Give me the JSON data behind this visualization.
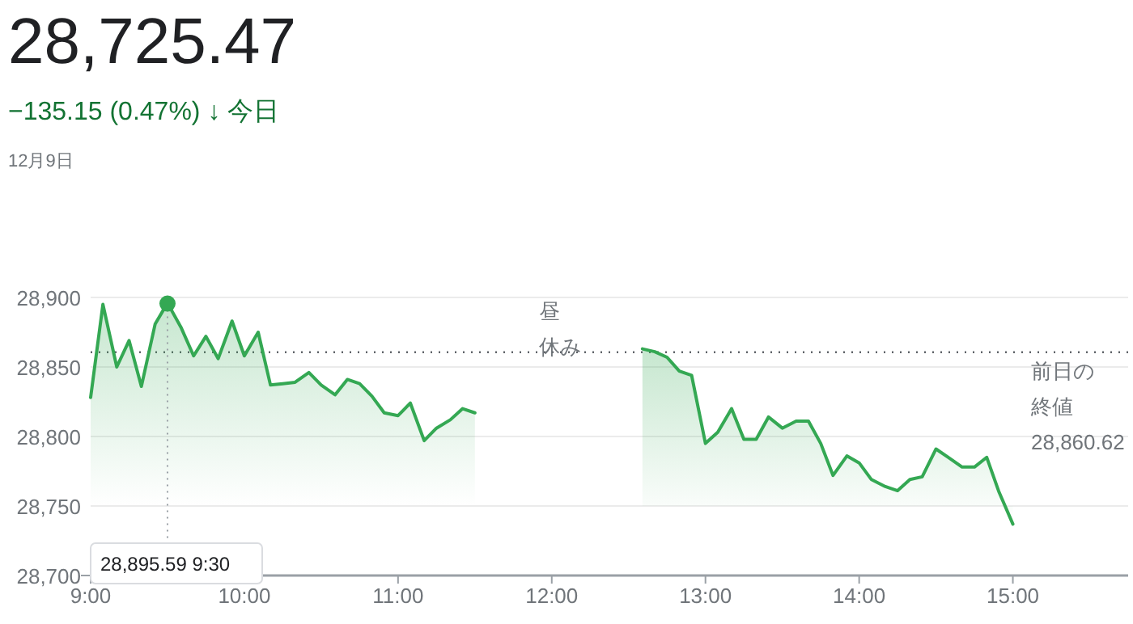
{
  "chart_data": {
    "type": "area",
    "title": "28,725.47",
    "subtitle": "−135.15 (0.47%) ↓ 今日",
    "annotations": [
      "12月9日",
      "昼",
      "休み",
      "前日の",
      "終値",
      "28,860.62",
      {
        "text": "28,895.59 9:30",
        "x": 9.5,
        "y": 28895.59
      }
    ],
    "xlim": [
      9,
      15.75
    ],
    "ylim": [
      28700,
      28900
    ],
    "xticks": [
      {
        "value": 9,
        "label": "9:00"
      },
      {
        "value": 10,
        "label": "10:00"
      },
      {
        "value": 11,
        "label": "11:00"
      },
      {
        "value": 12,
        "label": "12:00"
      },
      {
        "value": 13,
        "label": "13:00"
      },
      {
        "value": 14,
        "label": "14:00"
      },
      {
        "value": 15,
        "label": "15:00"
      }
    ],
    "yticks": [
      {
        "value": 28700,
        "label": "28,700"
      },
      {
        "value": 28750,
        "label": "28,750"
      },
      {
        "value": 28800,
        "label": "28,800"
      },
      {
        "value": 28850,
        "label": "28,850"
      },
      {
        "value": 28900,
        "label": "28,900"
      }
    ],
    "grid": "y",
    "ref_lines": [
      {
        "axis": "y",
        "value": 28860.62,
        "color": "#5f6368",
        "line_style": "dotted"
      }
    ],
    "series": [
      {
        "color": "#34a853",
        "x": [
          9.0,
          9.08,
          9.17,
          9.25,
          9.33,
          9.42,
          9.5,
          9.59,
          9.67,
          9.75,
          9.83,
          9.92,
          10.0,
          10.09,
          10.17,
          10.25,
          10.33,
          10.42,
          10.5,
          10.59,
          10.67,
          10.75,
          10.83,
          10.91,
          11.0,
          11.08,
          11.17,
          11.25,
          11.34,
          11.42,
          11.5
        ],
        "values": [
          28828,
          28895,
          28850,
          28869,
          28836,
          28881,
          28896,
          28878,
          28858,
          28872,
          28856,
          28883,
          28858,
          28875,
          28837,
          28838,
          28839,
          28846,
          28837,
          28830,
          28841,
          28838,
          28829,
          28817,
          28815,
          28824,
          28797,
          28806,
          28812,
          28820,
          28817
        ]
      },
      {
        "color": "#34a853",
        "x": [
          12.59,
          12.67,
          12.75,
          12.83,
          12.91,
          13.0,
          13.08,
          13.17,
          13.25,
          13.33,
          13.41,
          13.5,
          13.59,
          13.67,
          13.75,
          13.83,
          13.92,
          14.0,
          14.08,
          14.17,
          14.25,
          14.33,
          14.41,
          14.5,
          14.58,
          14.67,
          14.75,
          14.83,
          14.91,
          15.0
        ],
        "values": [
          28863,
          28861,
          28857,
          28847,
          28844,
          28795,
          28803,
          28820,
          28798,
          28798,
          28814,
          28806,
          28811,
          28811,
          28795,
          28772,
          28786,
          28781,
          28769,
          28764,
          28761,
          28769,
          28771,
          28791,
          28785,
          28778,
          28778,
          28785,
          28760,
          28737
        ]
      }
    ]
  }
}
